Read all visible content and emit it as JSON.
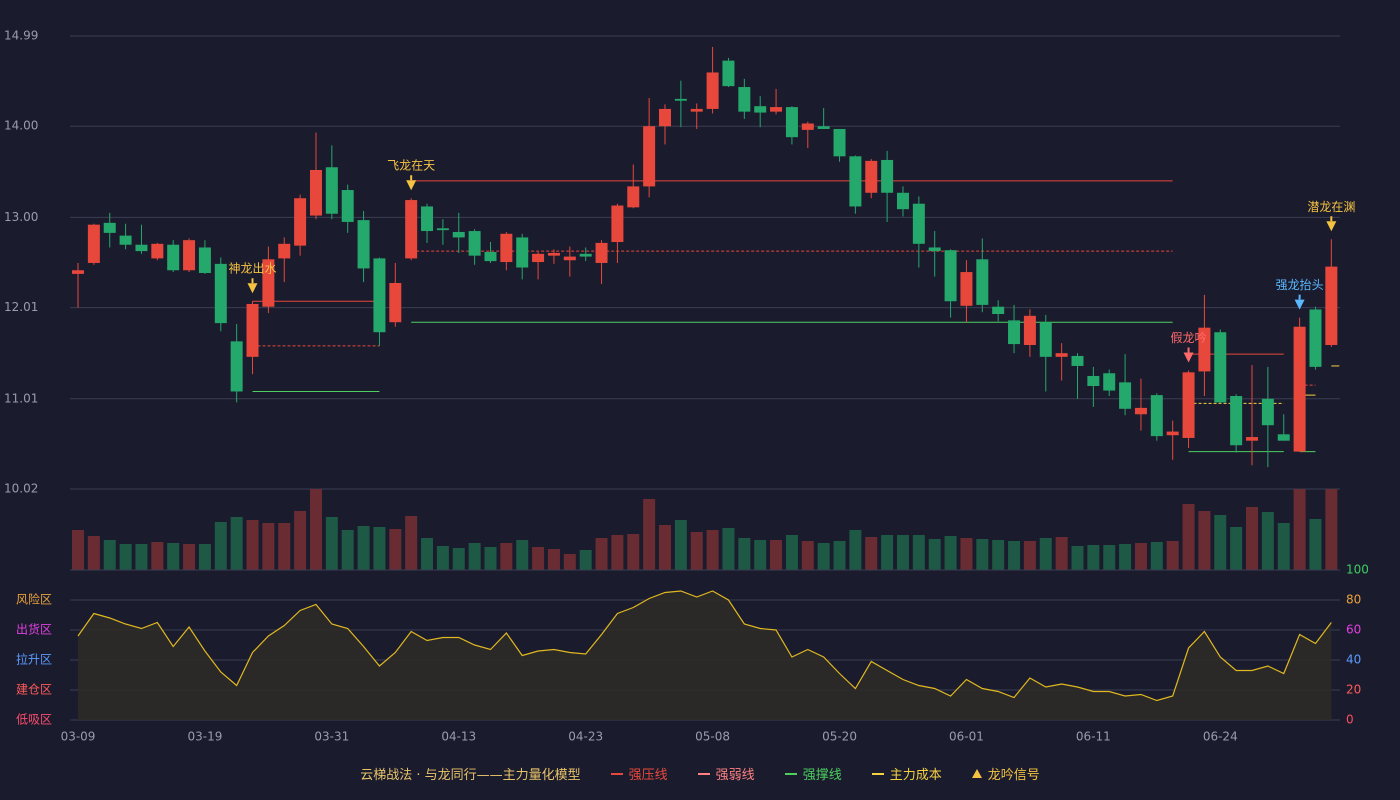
{
  "chart_data": {
    "type": "candlestick",
    "categories": [
      "03-09",
      null,
      null,
      null,
      null,
      null,
      null,
      null,
      "03-19",
      null,
      null,
      null,
      null,
      null,
      null,
      null,
      "03-31",
      null,
      null,
      null,
      null,
      null,
      null,
      null,
      "04-13",
      null,
      null,
      null,
      null,
      null,
      null,
      null,
      "04-23",
      null,
      null,
      null,
      null,
      null,
      null,
      null,
      "05-08",
      null,
      null,
      null,
      null,
      null,
      null,
      null,
      "05-20",
      null,
      null,
      null,
      null,
      null,
      null,
      null,
      "06-01",
      null,
      null,
      null,
      null,
      null,
      null,
      null,
      "06-11",
      null,
      null,
      null,
      null,
      null,
      null,
      null,
      "06-24",
      null,
      null,
      null,
      null,
      null,
      null,
      null
    ],
    "open": [
      12.38,
      12.5,
      12.94,
      12.8,
      12.7,
      12.55,
      12.7,
      12.42,
      12.67,
      12.49,
      11.64,
      11.47,
      12.02,
      12.55,
      12.69,
      13.02,
      13.55,
      13.3,
      12.97,
      12.55,
      11.85,
      12.55,
      13.12,
      12.88,
      12.84,
      12.85,
      12.62,
      12.51,
      12.78,
      12.51,
      12.58,
      12.53,
      12.6,
      12.5,
      12.73,
      13.11,
      13.34,
      14.0,
      14.3,
      14.16,
      14.19,
      14.72,
      14.43,
      14.22,
      14.16,
      14.21,
      13.96,
      14.0,
      13.97,
      13.67,
      13.27,
      13.63,
      13.27,
      13.15,
      12.67,
      12.64,
      12.03,
      12.54,
      12.02,
      11.87,
      11.6,
      11.85,
      11.47,
      11.48,
      11.26,
      11.29,
      11.19,
      10.84,
      11.05,
      10.61,
      10.58,
      11.31,
      11.74,
      11.04,
      10.55,
      11.01,
      10.62,
      10.43,
      11.99,
      11.6
    ],
    "high": [
      12.5,
      12.93,
      13.05,
      12.93,
      12.92,
      12.72,
      12.75,
      12.77,
      12.75,
      12.56,
      11.83,
      12.08,
      12.68,
      12.78,
      13.25,
      13.93,
      13.79,
      13.36,
      13.07,
      12.56,
      12.5,
      13.21,
      13.15,
      12.98,
      13.05,
      12.87,
      12.73,
      12.84,
      12.82,
      12.62,
      12.65,
      12.68,
      12.67,
      12.75,
      13.15,
      13.58,
      14.31,
      14.24,
      14.5,
      14.25,
      14.87,
      14.75,
      14.52,
      14.33,
      14.41,
      14.22,
      14.05,
      14.2,
      13.97,
      13.68,
      13.64,
      13.73,
      13.34,
      13.23,
      12.85,
      12.65,
      12.53,
      12.77,
      12.09,
      12.04,
      11.99,
      11.93,
      11.62,
      11.51,
      11.36,
      11.33,
      11.5,
      11.23,
      11.07,
      10.77,
      11.32,
      12.15,
      11.77,
      11.06,
      11.38,
      11.36,
      10.84,
      11.9,
      12.02,
      12.76
    ],
    "low": [
      12.01,
      12.48,
      12.67,
      12.65,
      12.6,
      12.53,
      12.4,
      12.4,
      12.38,
      11.75,
      10.97,
      11.28,
      11.95,
      12.29,
      12.58,
      12.98,
      12.98,
      12.83,
      12.29,
      11.59,
      11.8,
      12.53,
      12.72,
      12.7,
      12.61,
      12.48,
      12.5,
      12.42,
      12.32,
      12.32,
      12.49,
      12.35,
      12.52,
      12.27,
      12.5,
      13.1,
      13.22,
      13.8,
      13.99,
      13.97,
      14.14,
      14.43,
      14.08,
      13.99,
      14.13,
      13.8,
      13.76,
      13.97,
      13.61,
      13.04,
      13.21,
      12.95,
      13.01,
      12.45,
      12.35,
      11.9,
      11.85,
      11.96,
      11.86,
      11.51,
      11.47,
      11.09,
      11.21,
      11.01,
      10.92,
      11.04,
      10.83,
      10.66,
      10.55,
      10.34,
      10.47,
      11.04,
      10.96,
      10.42,
      10.28,
      10.26,
      10.55,
      10.44,
      11.33,
      11.58
    ],
    "close": [
      12.42,
      12.92,
      12.83,
      12.7,
      12.63,
      12.71,
      12.42,
      12.75,
      12.39,
      11.84,
      11.09,
      12.05,
      12.54,
      12.71,
      13.21,
      13.52,
      13.04,
      12.95,
      12.44,
      11.74,
      12.28,
      13.19,
      12.85,
      12.86,
      12.78,
      12.58,
      12.52,
      12.82,
      12.45,
      12.6,
      12.61,
      12.57,
      12.57,
      12.72,
      13.13,
      13.34,
      14.0,
      14.19,
      14.28,
      14.19,
      14.59,
      14.44,
      14.16,
      14.15,
      14.21,
      13.88,
      14.03,
      13.97,
      13.67,
      13.12,
      13.62,
      13.27,
      13.09,
      12.71,
      12.63,
      12.08,
      12.4,
      12.04,
      11.94,
      11.61,
      11.92,
      11.47,
      11.51,
      11.37,
      11.15,
      11.1,
      10.9,
      10.91,
      10.6,
      10.65,
      11.3,
      11.79,
      10.97,
      10.5,
      10.59,
      10.72,
      10.55,
      11.8,
      11.36,
      12.46
    ],
    "volume": [
      40,
      34,
      30,
      26,
      26,
      28,
      27,
      26,
      26,
      48,
      53,
      50,
      47,
      47,
      59,
      81,
      53,
      40,
      44,
      43,
      41,
      54,
      32,
      24,
      22,
      27,
      23,
      27,
      30,
      23,
      21,
      16,
      20,
      32,
      35,
      36,
      71,
      45,
      50,
      38,
      40,
      42,
      32,
      30,
      30,
      35,
      29,
      27,
      29,
      40,
      33,
      35,
      35,
      35,
      31,
      34,
      32,
      31,
      30,
      29,
      29,
      32,
      33,
      24,
      25,
      25,
      26,
      27,
      28,
      29,
      66,
      59,
      55,
      43,
      63,
      58,
      47,
      81,
      51,
      81
    ],
    "ylim": [
      10.02,
      14.99
    ],
    "yticks": [
      10.02,
      11.01,
      12.01,
      {
        "value": 13,
        "label": "13.00"
      },
      {
        "value": 14,
        "label": "14.00"
      },
      14.99
    ],
    "colors": {
      "up": "#e8483c",
      "down": "#25a86b",
      "volume_up": "#6a2c33",
      "volume_down": "#1d5944"
    },
    "signals": [
      {
        "label": "神龙出水",
        "index": 11,
        "color": "#f5c242"
      },
      {
        "label": "飞龙在天",
        "index": 21,
        "color": "#f5c242"
      },
      {
        "label": "假龙吟",
        "index": 70,
        "color": "#ff6b6b"
      },
      {
        "label": "强龙抬头",
        "index": 77,
        "color": "#5ab8ff"
      },
      {
        "label": "潜龙在渊",
        "index": 79,
        "color": "#f5c242"
      }
    ],
    "levels": [
      {
        "color": "#e8483c",
        "dash": false,
        "start": 11,
        "end": 19,
        "value": 12.08
      },
      {
        "color": "#e8483c",
        "dash": true,
        "start": 11,
        "end": 19,
        "value": 11.59
      },
      {
        "color": "#4ccf5f",
        "dash": false,
        "start": 11,
        "end": 19,
        "value": 11.09
      },
      {
        "color": "#e8483c",
        "dash": false,
        "start": 21,
        "end": 69,
        "value": 13.4
      },
      {
        "color": "#e8483c",
        "dash": true,
        "start": 21,
        "end": 69,
        "value": 12.63
      },
      {
        "color": "#4ccf5f",
        "dash": false,
        "start": 21,
        "end": 69,
        "value": 11.85
      },
      {
        "color": "#e8483c",
        "dash": false,
        "start": 70,
        "end": 76,
        "value": 11.5
      },
      {
        "color": "#f5d142",
        "dash": true,
        "start": 70,
        "end": 76,
        "value": 10.96
      },
      {
        "color": "#4ccf5f",
        "dash": false,
        "start": 70,
        "end": 76,
        "value": 10.43
      },
      {
        "color": "#e8483c",
        "dash": true,
        "start": 77,
        "end": 78,
        "value": 11.16
      },
      {
        "color": "#f5d142",
        "dash": false,
        "start": 77,
        "end": 78,
        "value": 11.05
      },
      {
        "color": "#4ccf5f",
        "dash": false,
        "start": 77,
        "end": 78,
        "value": 10.43
      },
      {
        "color": "#f5d142",
        "dash": false,
        "start": 79,
        "end": 79,
        "value": 11.37
      }
    ],
    "indicator": {
      "type": "line",
      "color": "#e0b820",
      "values": [
        56,
        71,
        68,
        64,
        61,
        65,
        49,
        62,
        46,
        32,
        23,
        45,
        56,
        63,
        73,
        77,
        64,
        61,
        49,
        36,
        45,
        59,
        53,
        55,
        55,
        50,
        47,
        58,
        43,
        46,
        47,
        45,
        44,
        57,
        71,
        75,
        81,
        85,
        86,
        82,
        86,
        80,
        64,
        61,
        60,
        42,
        47,
        42,
        31,
        21,
        39,
        33,
        27,
        23,
        21,
        16,
        27,
        21,
        19,
        15,
        28,
        22,
        24,
        22,
        19,
        19,
        16,
        17,
        13,
        16,
        48,
        59,
        42,
        33,
        33,
        36,
        31,
        57,
        51,
        65
      ],
      "ylim": [
        0,
        100
      ],
      "yticks": [
        0,
        20,
        40,
        60,
        80,
        100
      ],
      "tick_colors": [
        "#ff4d5e",
        "#ff5a5a",
        "#5b9bff",
        "#e040e0",
        "#e8a23c",
        "#3ccf5f"
      ],
      "zones": [
        {
          "label": "低吸区",
          "value": 0,
          "color": "#ff4d6d"
        },
        {
          "label": "建仓区",
          "value": 20,
          "color": "#ff5a5a"
        },
        {
          "label": "拉升区",
          "value": 40,
          "color": "#5b9bff"
        },
        {
          "label": "出货区",
          "value": 60,
          "color": "#e040e0"
        },
        {
          "label": "风险区",
          "value": 80,
          "color": "#e8a23c"
        }
      ]
    },
    "legend": {
      "title": "云梯战法 · 与龙同行——主力量化模型",
      "items": [
        {
          "label": "强压线",
          "color": "#e8483c",
          "style": "solid"
        },
        {
          "label": "强弱线",
          "color": "#ff8080",
          "style": "dashed"
        },
        {
          "label": "强撑线",
          "color": "#4ccf5f",
          "style": "solid"
        },
        {
          "label": "主力成本",
          "color": "#f5d142",
          "style": "dashed"
        },
        {
          "label": "龙吟信号",
          "color": "#f5c242",
          "style": "triangle"
        }
      ]
    }
  }
}
